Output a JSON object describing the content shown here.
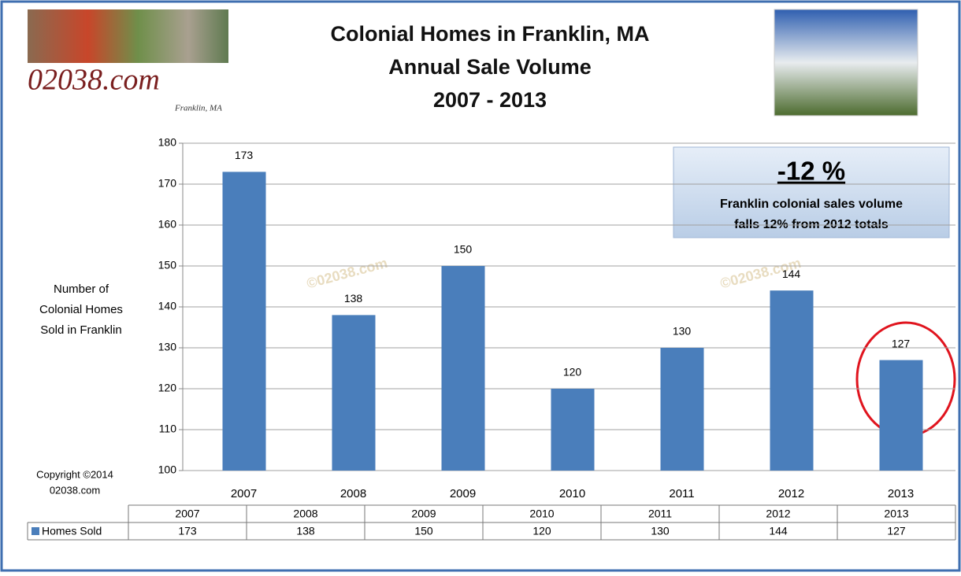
{
  "chart_data": {
    "type": "bar",
    "title_lines": [
      "Colonial Homes in Franklin, MA",
      "Annual Sale Volume",
      "2007 - 2013"
    ],
    "logo": "02038.com",
    "logo_sub": "Franklin, MA",
    "y_label_lines": [
      "Number of",
      "Colonial Homes",
      "Sold in Franklin"
    ],
    "copyright_lines": [
      "Copyright ©2014",
      "02038.com"
    ],
    "watermark": "©02038.com",
    "annotation": {
      "headline": "-12 %",
      "lines": [
        "Franklin colonial sales volume",
        "falls 12% from 2012 totals"
      ]
    },
    "categories": [
      "2007",
      "2008",
      "2009",
      "2010",
      "2011",
      "2012",
      "2013"
    ],
    "series": [
      {
        "name": "Homes Sold",
        "color": "#4a7ebb",
        "values": [
          173,
          138,
          150,
          120,
          130,
          144,
          127
        ]
      }
    ],
    "ylim": [
      100,
      180
    ],
    "yticks": [
      100,
      110,
      120,
      130,
      140,
      150,
      160,
      170,
      180
    ],
    "grid": true,
    "data_table": true
  }
}
